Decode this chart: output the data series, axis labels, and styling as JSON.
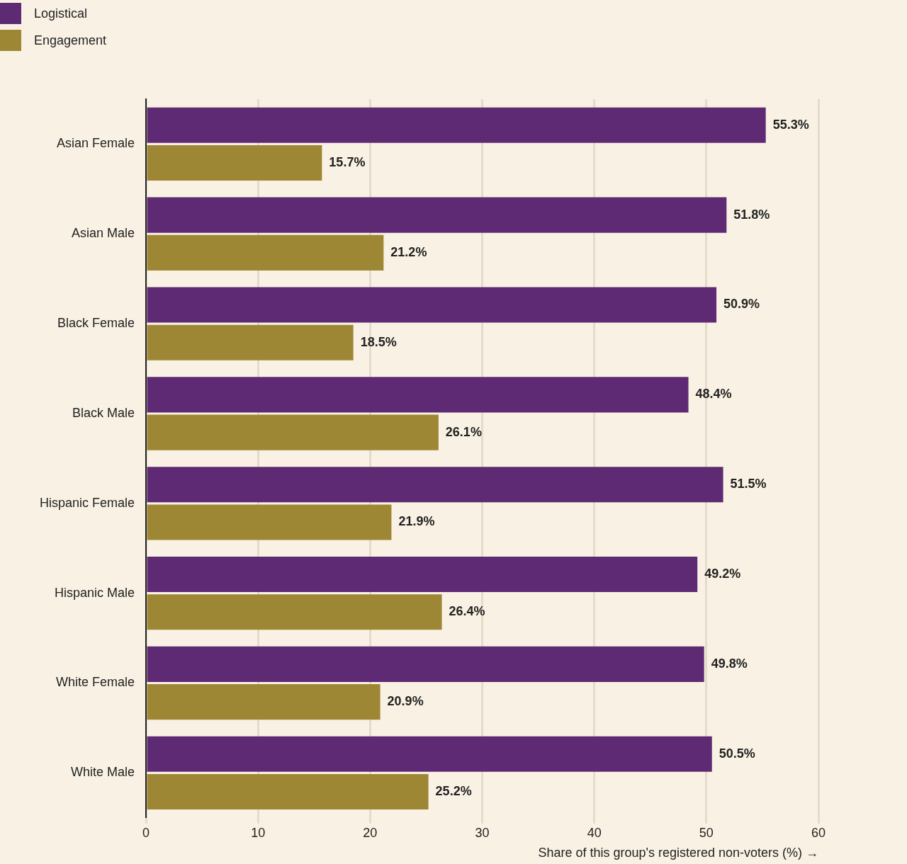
{
  "chart_data": {
    "type": "bar",
    "orientation": "horizontal",
    "categories": [
      "Asian Female",
      "Asian Male",
      "Black Female",
      "Black Male",
      "Hispanic Female",
      "Hispanic Male",
      "White Female",
      "White Male"
    ],
    "series": [
      {
        "name": "Logistical",
        "color": "#5e2a73",
        "values": [
          55.3,
          51.8,
          50.9,
          48.4,
          51.5,
          49.2,
          49.8,
          50.5
        ],
        "value_labels": [
          "55.3%",
          "51.8%",
          "50.9%",
          "48.4%",
          "51.5%",
          "49.2%",
          "49.8%",
          "50.5%"
        ]
      },
      {
        "name": "Engagement",
        "color": "#9e8734",
        "values": [
          15.7,
          21.2,
          18.5,
          26.1,
          21.9,
          26.4,
          20.9,
          25.2
        ],
        "value_labels": [
          "15.7%",
          "21.2%",
          "18.5%",
          "26.1%",
          "21.9%",
          "26.4%",
          "20.9%",
          "25.2%"
        ]
      }
    ],
    "xlabel": "Share of this group's registered non-voters (%) →",
    "xlim": [
      0,
      60
    ],
    "xticks": [
      0,
      10,
      20,
      30,
      40,
      50,
      60
    ],
    "grid": "x",
    "legend": "top left"
  }
}
